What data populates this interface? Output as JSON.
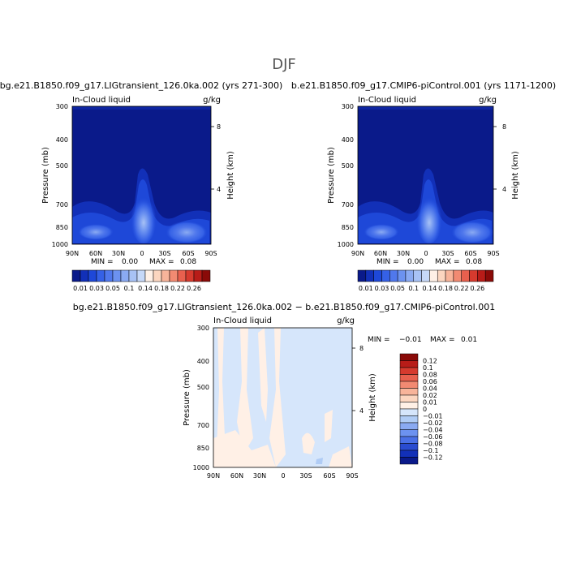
{
  "figure_title": "DJF",
  "colors": {
    "ocean_base": "#0c22a8",
    "positive_scale": [
      "#ffffff"
    ]
  },
  "chart_data": [
    {
      "type": "heatmap",
      "title": "bg.e21.B1850.f09_g17.LIGtransient_126.0ka.002 (yrs 271-300)",
      "subtitle_left": "In-Cloud liquid",
      "subtitle_right": "g/kg",
      "xlabel": "",
      "ylabel": "Pressure (mb)",
      "ylabel_right": "Height (km)",
      "x_ticks": [
        "90N",
        "60N",
        "30N",
        "0",
        "30S",
        "60S",
        "90S"
      ],
      "y_ticks": [
        "300",
        "400",
        "500",
        "700",
        "850",
        "1000"
      ],
      "y_right_ticks": [
        "8",
        "4"
      ],
      "min_label": "MIN =",
      "min_value": "0.00",
      "max_label": "MAX =",
      "max_value": "0.08",
      "colorbar_labels": [
        "0.01",
        "0.03",
        "0.05",
        "0.1",
        "0.14",
        "0.18",
        "0.22",
        "0.26"
      ],
      "colorbar_levels": [
        0.01,
        0.02,
        0.03,
        0.04,
        0.05,
        0.06,
        0.08,
        0.1,
        0.12,
        0.14,
        0.16,
        0.18,
        0.2,
        0.22,
        0.24,
        0.26
      ],
      "colorbar_colors": [
        "#0a1a8a",
        "#1230b8",
        "#1e48d8",
        "#3561e6",
        "#5078ec",
        "#6c92f0",
        "#8aaaf2",
        "#a8c2f5",
        "#c6d8f8",
        "#fff0e6",
        "#fcd6c0",
        "#f8b49a",
        "#f28a72",
        "#e8604e",
        "#d63a2e",
        "#b81c18",
        "#8a0a08"
      ]
    },
    {
      "type": "heatmap",
      "title": "b.e21.B1850.f09_g17.CMIP6-piControl.001 (yrs 1171-1200)",
      "subtitle_left": "In-Cloud liquid",
      "subtitle_right": "g/kg",
      "xlabel": "",
      "ylabel": "Pressure (mb)",
      "ylabel_right": "Height (km)",
      "x_ticks": [
        "90N",
        "60N",
        "30N",
        "0",
        "30S",
        "60S",
        "90S"
      ],
      "y_ticks": [
        "300",
        "400",
        "500",
        "700",
        "850",
        "1000"
      ],
      "y_right_ticks": [
        "8",
        "4"
      ],
      "min_label": "MIN =",
      "min_value": "0.00",
      "max_label": "MAX =",
      "max_value": "0.08",
      "colorbar_labels": [
        "0.01",
        "0.03",
        "0.05",
        "0.1",
        "0.14",
        "0.18",
        "0.22",
        "0.26"
      ],
      "colorbar_levels": [
        0.01,
        0.02,
        0.03,
        0.04,
        0.05,
        0.06,
        0.08,
        0.1,
        0.12,
        0.14,
        0.16,
        0.18,
        0.2,
        0.22,
        0.24,
        0.26
      ],
      "colorbar_colors": [
        "#0a1a8a",
        "#1230b8",
        "#1e48d8",
        "#3561e6",
        "#5078ec",
        "#6c92f0",
        "#8aaaf2",
        "#a8c2f5",
        "#c6d8f8",
        "#fff0e6",
        "#fcd6c0",
        "#f8b49a",
        "#f28a72",
        "#e8604e",
        "#d63a2e",
        "#b81c18",
        "#8a0a08"
      ]
    },
    {
      "type": "heatmap",
      "title": "bg.e21.B1850.f09_g17.LIGtransient_126.0ka.002 − b.e21.B1850.f09_g17.CMIP6-piControl.001",
      "subtitle_left": "In-Cloud liquid",
      "subtitle_right": "g/kg",
      "xlabel": "",
      "ylabel": "Pressure (mb)",
      "ylabel_right": "Height (km)",
      "x_ticks": [
        "90N",
        "60N",
        "30N",
        "0",
        "30S",
        "60S",
        "90S"
      ],
      "y_ticks": [
        "300",
        "400",
        "500",
        "700",
        "850",
        "1000"
      ],
      "y_right_ticks": [
        "8",
        "4"
      ],
      "min_label": "MIN =",
      "min_value": "−0.01",
      "max_label": "MAX =",
      "max_value": "0.01",
      "colorbar_labels": [
        "0.12",
        "0.1",
        "0.08",
        "0.06",
        "0.04",
        "0.02",
        "0.01",
        "0",
        "−0.01",
        "−0.02",
        "−0.04",
        "−0.06",
        "−0.08",
        "−0.1",
        "−0.12"
      ],
      "colorbar_colors": [
        "#8a0a08",
        "#b81c18",
        "#d63a2e",
        "#e8604e",
        "#f28a72",
        "#f8b49a",
        "#fcd6c0",
        "#fff0e6",
        "#d6e6fb",
        "#b0ccf5",
        "#8aaaf2",
        "#6c92f0",
        "#4a70e6",
        "#2a4cd0",
        "#1230b8",
        "#0a1a8a"
      ]
    }
  ]
}
